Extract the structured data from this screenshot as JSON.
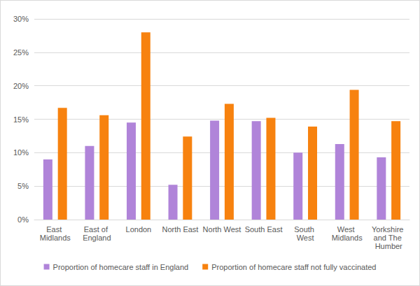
{
  "chart_data": {
    "type": "bar",
    "categories": [
      "East Midlands",
      "East of England",
      "London",
      "North East",
      "North West",
      "South East",
      "South West",
      "West Midlands",
      "Yorkshire and The Humber"
    ],
    "series": [
      {
        "name": "Proportion of homecare staff in England",
        "color": "#b084d9",
        "values": [
          9.0,
          11.0,
          14.5,
          5.2,
          14.8,
          14.7,
          10.0,
          11.3,
          9.3
        ]
      },
      {
        "name": "Proportion of homecare staff not fully vaccinated",
        "color": "#f7820f",
        "values": [
          16.7,
          15.6,
          28.0,
          12.4,
          17.3,
          15.2,
          13.9,
          19.4,
          14.7
        ]
      }
    ],
    "ylim": [
      0,
      30
    ],
    "yticks": [
      {
        "value": 0,
        "label": "0%"
      },
      {
        "value": 5,
        "label": "5%"
      },
      {
        "value": 10,
        "label": "10%"
      },
      {
        "value": 15,
        "label": "15%"
      },
      {
        "value": 20,
        "label": "20%"
      },
      {
        "value": 25,
        "label": "25%"
      },
      {
        "value": 30,
        "label": "30%"
      }
    ],
    "grid": true,
    "legend": "bottom"
  }
}
